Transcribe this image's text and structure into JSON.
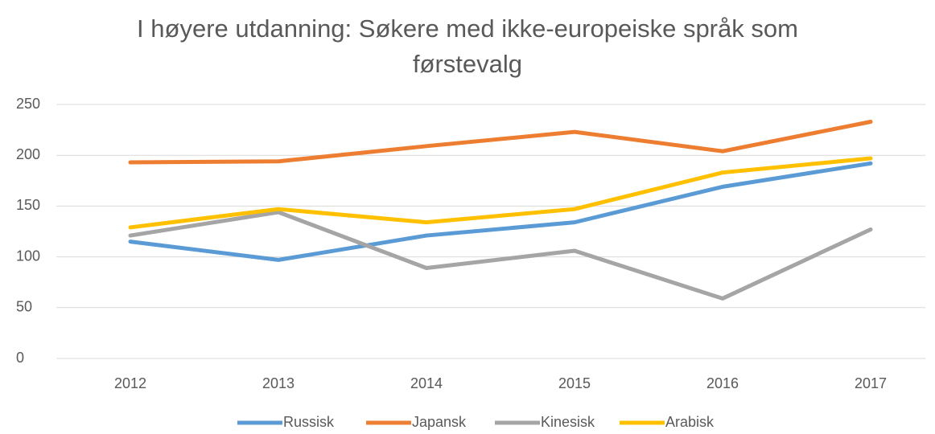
{
  "chart_data": {
    "type": "line",
    "title": "I høyere utdanning: Søkere med ikke-europeiske språk som førstevalg",
    "categories": [
      "2012",
      "2013",
      "2014",
      "2015",
      "2016",
      "2017"
    ],
    "series": [
      {
        "name": "Russisk",
        "color": "#5b9bd5",
        "values": [
          115,
          97,
          121,
          134,
          169,
          192
        ]
      },
      {
        "name": "Japansk",
        "color": "#ed7d31",
        "values": [
          193,
          194,
          209,
          223,
          204,
          233
        ]
      },
      {
        "name": "Kinesisk",
        "color": "#a5a5a5",
        "values": [
          121,
          144,
          89,
          106,
          59,
          127
        ]
      },
      {
        "name": "Arabisk",
        "color": "#ffc000",
        "values": [
          129,
          147,
          134,
          147,
          183,
          197
        ]
      }
    ],
    "ylim": [
      0,
      250
    ],
    "yticks": [
      0,
      50,
      100,
      150,
      200,
      250
    ],
    "grid": true,
    "legend": "bottom"
  }
}
